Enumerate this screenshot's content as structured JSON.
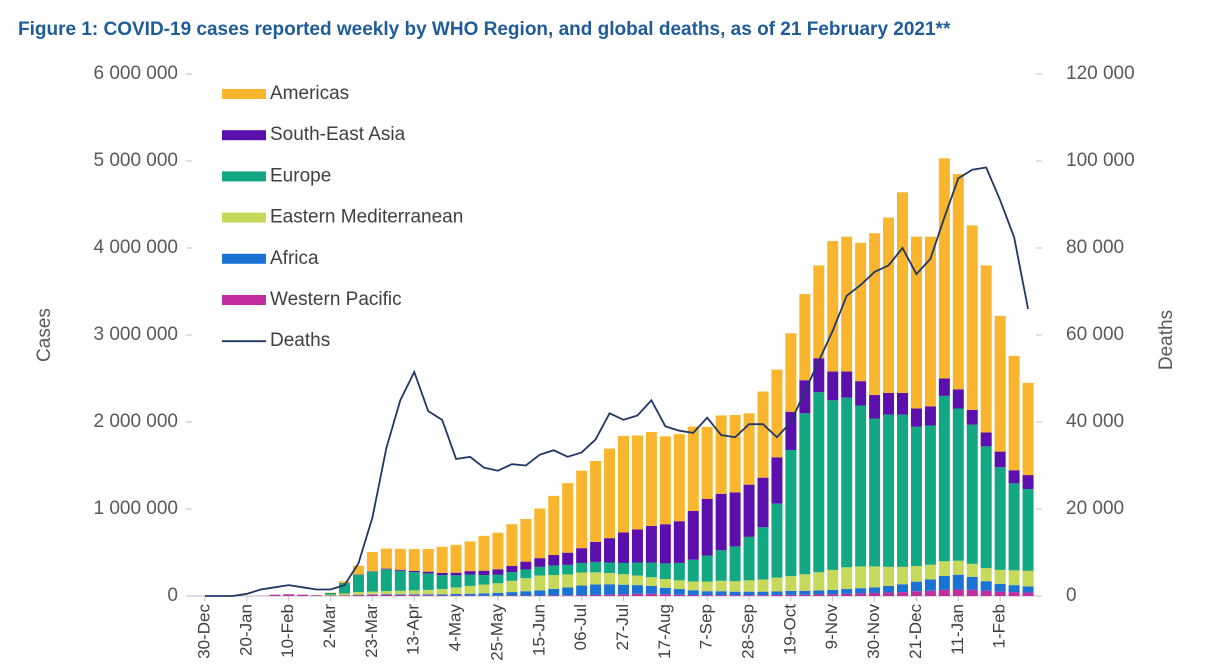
{
  "chart_data": {
    "type": "stacked-bar-line",
    "title": "Figure 1: COVID-19 cases reported weekly by WHO Region, and global deaths, as of 21 February 2021**",
    "y_label": "Cases",
    "y2_label": "Deaths",
    "categories": [
      "30-Dec",
      null,
      null,
      "20-Jan",
      null,
      null,
      "10-Feb",
      null,
      null,
      "2-Mar",
      null,
      null,
      "23-Mar",
      null,
      null,
      "13-Apr",
      null,
      null,
      "4-May",
      null,
      null,
      "25-May",
      null,
      null,
      "15-Jun",
      null,
      null,
      "06-Jul",
      null,
      null,
      "27-Jul",
      null,
      null,
      "17-Aug",
      null,
      null,
      "7-Sep",
      null,
      null,
      "28-Sep",
      null,
      null,
      "19-Oct",
      null,
      null,
      "9-Nov",
      null,
      null,
      "30-Nov",
      null,
      null,
      "21-Dec",
      null,
      null,
      "11-Jan",
      null,
      null,
      "1-Feb",
      null,
      null
    ],
    "ylim": [
      0,
      6000000
    ],
    "yticks": [
      0,
      {
        "value": 1000000,
        "label": "1 000 000"
      },
      {
        "value": 2000000,
        "label": "2 000 000"
      },
      {
        "value": 3000000,
        "label": "3 000 000"
      },
      {
        "value": 4000000,
        "label": "4 000 000"
      },
      {
        "value": 5000000,
        "label": "5 000 000"
      },
      {
        "value": 6000000,
        "label": "6 000 000"
      }
    ],
    "y2lim": [
      0,
      120000
    ],
    "y2ticks": [
      0,
      {
        "value": 20000,
        "label": "20 000"
      },
      {
        "value": 40000,
        "label": "40 000"
      },
      {
        "value": 60000,
        "label": "60 000"
      },
      {
        "value": 80000,
        "label": "80 000"
      },
      {
        "value": 100000,
        "label": "100 000"
      },
      {
        "value": 120000,
        "label": "120 000"
      }
    ],
    "legend_position": "upper left",
    "series": [
      {
        "name": "Western Pacific",
        "color": "#c22d9f",
        "values": [
          0,
          0,
          0,
          300,
          2000,
          15000,
          20000,
          15000,
          8000,
          5000,
          8000,
          12000,
          15000,
          15000,
          12000,
          10000,
          8000,
          5000,
          5000,
          4000,
          4000,
          4000,
          5000,
          5000,
          5000,
          6000,
          8000,
          10000,
          12000,
          15000,
          20000,
          25000,
          25000,
          20000,
          15000,
          12000,
          10000,
          10000,
          10000,
          10000,
          10000,
          12000,
          13000,
          15000,
          18000,
          20000,
          25000,
          30000,
          35000,
          40000,
          45000,
          55000,
          60000,
          70000,
          75000,
          70000,
          60000,
          50000,
          45000,
          40000
        ]
      },
      {
        "name": "Africa",
        "color": "#1a73d4",
        "values": [
          0,
          0,
          0,
          0,
          0,
          0,
          0,
          0,
          0,
          0,
          1000,
          3000,
          5000,
          7000,
          8000,
          10000,
          12000,
          15000,
          18000,
          22000,
          27000,
          33000,
          40000,
          50000,
          60000,
          75000,
          90000,
          110000,
          120000,
          120000,
          110000,
          100000,
          90000,
          75000,
          65000,
          55000,
          45000,
          45000,
          40000,
          40000,
          40000,
          40000,
          45000,
          45000,
          45000,
          50000,
          55000,
          60000,
          65000,
          75000,
          90000,
          110000,
          130000,
          160000,
          170000,
          150000,
          110000,
          90000,
          80000,
          70000
        ]
      },
      {
        "name": "Eastern Mediterranean",
        "color": "#c6d95a",
        "values": [
          0,
          0,
          0,
          0,
          0,
          0,
          0,
          0,
          1000,
          10000,
          20000,
          30000,
          30000,
          35000,
          40000,
          45000,
          50000,
          60000,
          75000,
          90000,
          100000,
          110000,
          130000,
          150000,
          170000,
          160000,
          150000,
          150000,
          140000,
          130000,
          120000,
          110000,
          100000,
          100000,
          100000,
          100000,
          110000,
          120000,
          120000,
          130000,
          140000,
          160000,
          170000,
          190000,
          210000,
          230000,
          250000,
          250000,
          240000,
          220000,
          200000,
          180000,
          170000,
          170000,
          160000,
          150000,
          150000,
          160000,
          170000,
          180000
        ]
      },
      {
        "name": "Europe",
        "color": "#13a884",
        "values": [
          0,
          0,
          0,
          0,
          0,
          0,
          0,
          0,
          1000,
          20000,
          120000,
          200000,
          230000,
          250000,
          230000,
          210000,
          190000,
          160000,
          140000,
          130000,
          110000,
          100000,
          100000,
          100000,
          100000,
          110000,
          110000,
          110000,
          120000,
          120000,
          130000,
          150000,
          170000,
          180000,
          200000,
          250000,
          300000,
          350000,
          400000,
          500000,
          600000,
          850000,
          1450000,
          1850000,
          2070000,
          1950000,
          1950000,
          1850000,
          1700000,
          1750000,
          1750000,
          1600000,
          1600000,
          1900000,
          1750000,
          1600000,
          1400000,
          1180000,
          1000000,
          940000
        ]
      },
      {
        "name": "South-East Asia",
        "color": "#5b0fad",
        "values": [
          0,
          0,
          0,
          0,
          0,
          0,
          0,
          0,
          0,
          0,
          1000,
          3000,
          5000,
          8000,
          12000,
          15000,
          20000,
          25000,
          30000,
          40000,
          50000,
          60000,
          70000,
          90000,
          100000,
          120000,
          140000,
          170000,
          230000,
          280000,
          350000,
          380000,
          420000,
          450000,
          480000,
          560000,
          650000,
          650000,
          620000,
          600000,
          570000,
          530000,
          440000,
          380000,
          390000,
          330000,
          300000,
          280000,
          270000,
          250000,
          250000,
          210000,
          220000,
          200000,
          220000,
          170000,
          160000,
          180000,
          150000,
          160000
        ]
      },
      {
        "name": "Americas",
        "color": "#f9b52d",
        "values": [
          0,
          0,
          0,
          0,
          0,
          0,
          0,
          0,
          0,
          5000,
          20000,
          100000,
          220000,
          230000,
          240000,
          250000,
          260000,
          300000,
          320000,
          340000,
          400000,
          420000,
          480000,
          490000,
          570000,
          680000,
          800000,
          890000,
          930000,
          1030000,
          1110000,
          1080000,
          1080000,
          1010000,
          1000000,
          970000,
          830000,
          900000,
          890000,
          820000,
          990000,
          1010000,
          902000,
          990000,
          1067000,
          1500000,
          1550000,
          1590000,
          1860000,
          2015000,
          2305000,
          1975000,
          1950000,
          2530000,
          2475000,
          2120000,
          1920000,
          1560000,
          1315000,
          1060000
        ]
      },
      {
        "name": "Deaths",
        "color": "#1f3864",
        "axis": "y2",
        "values": [
          0,
          0,
          0,
          500,
          1500,
          2000,
          2500,
          2000,
          1500,
          1500,
          2500,
          7500,
          18000,
          34000,
          45000,
          51500,
          42500,
          40500,
          31500,
          32000,
          29500,
          28800,
          30300,
          30000,
          32500,
          33500,
          32000,
          33000,
          36000,
          42000,
          40500,
          41500,
          45000,
          39000,
          38000,
          37500,
          41000,
          37000,
          36500,
          39500,
          39500,
          36500,
          40000,
          47000,
          54000,
          61000,
          69000,
          71500,
          74500,
          76000,
          80000,
          74000,
          77500,
          87000,
          96000,
          98000,
          98500,
          91000,
          82500,
          66000
        ]
      }
    ]
  }
}
